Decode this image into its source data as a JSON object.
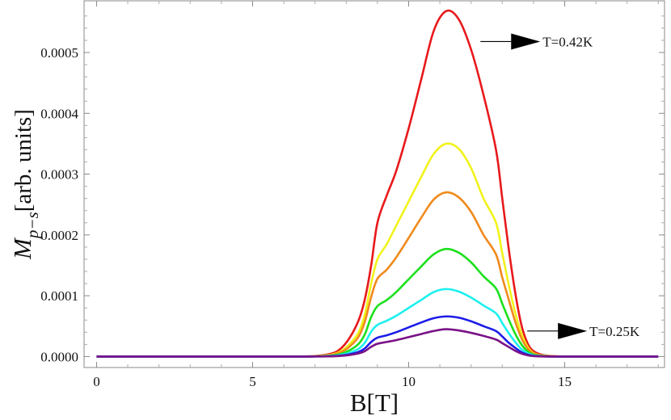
{
  "chart_data": {
    "type": "line",
    "xlabel": "B[T]",
    "ylabel": {
      "main": "M",
      "sub": "p−s",
      "rest": "[arb. units]"
    },
    "xlim": [
      -0.4,
      18.2
    ],
    "ylim": [
      -1.8e-05,
      0.000585
    ],
    "xticks": [
      0,
      5,
      10,
      15
    ],
    "xtick_labels": [
      "0",
      "5",
      "10",
      "15"
    ],
    "yticks": [
      0,
      0.0001,
      0.0002,
      0.0003,
      0.0004,
      0.0005
    ],
    "ytick_labels": [
      "0.0000",
      "0.0001",
      "0.0002",
      "0.0003",
      "0.0004",
      "0.0005"
    ],
    "grid": false,
    "x": [
      0,
      6,
      6.5,
      7.0,
      7.5,
      7.8,
      8.1,
      8.4,
      8.6,
      8.8,
      9.0,
      9.3,
      9.6,
      10.0,
      10.4,
      10.8,
      11.2,
      11.6,
      12.0,
      12.4,
      12.8,
      13.0,
      13.2,
      13.4,
      13.6,
      13.8,
      14.0,
      14.3,
      14.7,
      15.5,
      18
    ],
    "series": [
      {
        "color": "#e8191c",
        "values": [
          0,
          0,
          2e-07,
          8e-07,
          4.5e-06,
          1.2e-05,
          3e-05,
          6e-05,
          9.5e-05,
          0.00015,
          0.00022,
          0.000265,
          0.000305,
          0.000375,
          0.000455,
          0.000535,
          0.000568,
          0.000555,
          0.000505,
          0.00043,
          0.00034,
          0.00026,
          0.00018,
          0.00011,
          5.5e-05,
          2.3e-05,
          9e-06,
          2.5e-06,
          5e-07,
          0,
          0
        ]
      },
      {
        "color": "#f2f21a",
        "values": [
          0,
          0,
          1e-07,
          5e-07,
          3e-06,
          8e-06,
          2e-05,
          4e-05,
          7e-05,
          0.00012,
          0.00016,
          0.000185,
          0.000215,
          0.000255,
          0.000295,
          0.000333,
          0.00035,
          0.000342,
          0.00031,
          0.00026,
          0.00022,
          0.00017,
          0.00012,
          7.5e-05,
          4e-05,
          1.7e-05,
          6e-06,
          1.5e-06,
          3e-07,
          0,
          0
        ]
      },
      {
        "color": "#f08a1c",
        "values": [
          0,
          0,
          1e-07,
          4e-07,
          2.5e-06,
          6.5e-06,
          1.6e-05,
          3.3e-05,
          5.8e-05,
          9.8e-05,
          0.000128,
          0.000143,
          0.000163,
          0.000195,
          0.000228,
          0.000258,
          0.00027,
          0.000262,
          0.000238,
          0.0002,
          0.000168,
          0.00013,
          9.5e-05,
          6e-05,
          3.2e-05,
          1.4e-05,
          5e-06,
          1.2e-06,
          2e-07,
          0,
          0
        ]
      },
      {
        "color": "#1ce01c",
        "values": [
          0,
          0,
          1e-07,
          3e-07,
          1.6e-06,
          4e-06,
          1e-05,
          2.1e-05,
          3.7e-05,
          6.5e-05,
          8.3e-05,
          9.3e-05,
          0.000106,
          0.000127,
          0.000148,
          0.000168,
          0.000177,
          0.000171,
          0.000155,
          0.000132,
          0.000112,
          8.7e-05,
          6.2e-05,
          3.9e-05,
          2.1e-05,
          9e-06,
          3.2e-06,
          8e-07,
          1e-07,
          0,
          0
        ]
      },
      {
        "color": "#1cf0f0",
        "values": [
          0,
          0,
          0,
          2e-07,
          1e-06,
          2.5e-06,
          6.3e-06,
          1.3e-05,
          2.3e-05,
          4.1e-05,
          5.2e-05,
          5.9e-05,
          6.7e-05,
          8e-05,
          9.3e-05,
          0.000106,
          0.000111,
          0.000107,
          9.7e-05,
          8.4e-05,
          7.1e-05,
          5.5e-05,
          3.9e-05,
          2.5e-05,
          1.3e-05,
          5.7e-06,
          2e-06,
          5e-07,
          1e-07,
          0,
          0
        ]
      },
      {
        "color": "#1c1ce8",
        "values": [
          0,
          0,
          0,
          1e-07,
          6e-07,
          1.5e-06,
          3.7e-06,
          7.7e-06,
          1.35e-05,
          2.4e-05,
          3.1e-05,
          3.5e-05,
          4e-05,
          4.8e-05,
          5.6e-05,
          6.3e-05,
          6.6e-05,
          6.4e-05,
          5.8e-05,
          5e-05,
          4.2e-05,
          3.3e-05,
          2.3e-05,
          1.5e-05,
          7.8e-06,
          3.4e-06,
          1.2e-06,
          3e-07,
          0,
          0,
          0
        ]
      },
      {
        "color": "#7a1287",
        "values": [
          0,
          0,
          0,
          1e-07,
          4e-07,
          1e-06,
          2.5e-06,
          5.2e-06,
          9e-06,
          1.6e-05,
          2.1e-05,
          2.4e-05,
          2.7e-05,
          3.2e-05,
          3.7e-05,
          4.2e-05,
          4.5e-05,
          4.3e-05,
          3.9e-05,
          3.4e-05,
          2.8e-05,
          2.2e-05,
          1.6e-05,
          1e-05,
          5.2e-06,
          2.3e-06,
          8e-07,
          2e-07,
          0,
          0,
          0
        ]
      }
    ],
    "annotations": [
      {
        "text": "T=0.42K",
        "x": 12.3,
        "y": 0.000518
      },
      {
        "text": "T=0.25K",
        "x": 13.8,
        "y": 4.2e-05
      }
    ]
  }
}
